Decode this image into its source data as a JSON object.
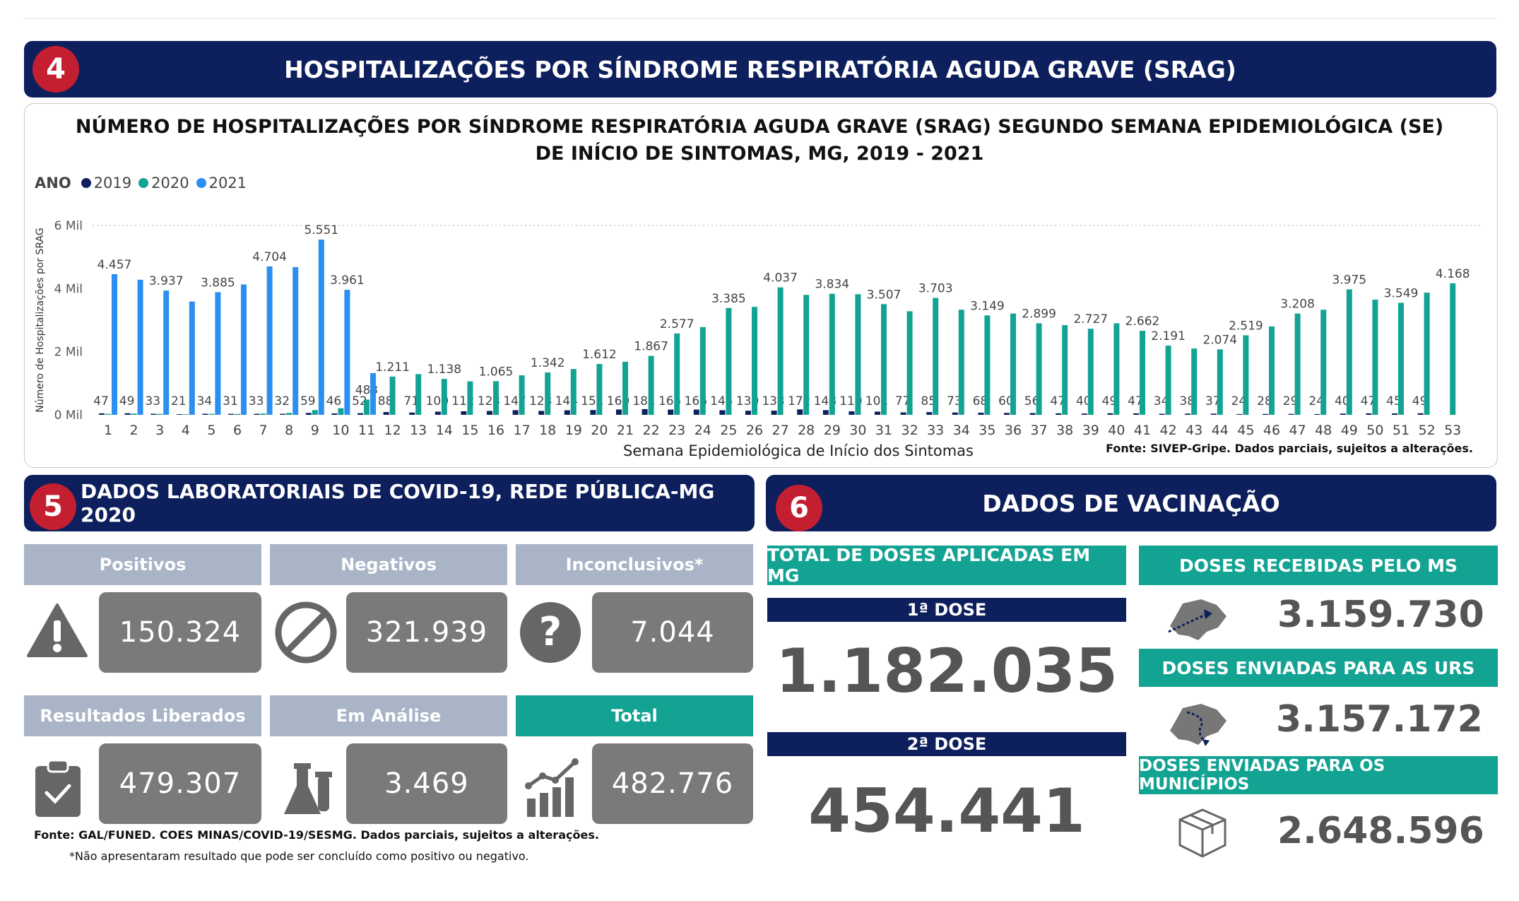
{
  "top_rule": true,
  "section4": {
    "number": "4",
    "title": "HOSPITALIZAÇÕES POR SÍNDROME RESPIRATÓRIA AGUDA GRAVE (SRAG)"
  },
  "chart_data": {
    "type": "bar",
    "title": "NÚMERO DE HOSPITALIZAÇÕES POR SÍNDROME RESPIRATÓRIA AGUDA GRAVE (SRAG) SEGUNDO SEMANA EPIDEMIOLÓGICA (SE) DE INÍCIO DE SINTOMAS, MG, 2019 - 2021",
    "legend_title": "ANO",
    "xlabel": "Semana Epidemiológica de Início dos Sintomas",
    "ylabel": "Número de Hospitalizações por SRAG",
    "ylim": [
      0,
      6000
    ],
    "yticks": [
      {
        "v": 0,
        "label": "0 Mil"
      },
      {
        "v": 2000,
        "label": "2 Mil"
      },
      {
        "v": 4000,
        "label": "4 Mil"
      },
      {
        "v": 6000,
        "label": "6 Mil"
      }
    ],
    "grid": "dotted-top",
    "legend_position": "top-left",
    "categories": [
      "1",
      "2",
      "3",
      "4",
      "5",
      "6",
      "7",
      "8",
      "9",
      "10",
      "11",
      "12",
      "13",
      "14",
      "15",
      "16",
      "17",
      "18",
      "19",
      "20",
      "21",
      "22",
      "23",
      "24",
      "25",
      "26",
      "27",
      "28",
      "29",
      "30",
      "31",
      "32",
      "33",
      "34",
      "35",
      "36",
      "37",
      "38",
      "39",
      "40",
      "41",
      "42",
      "43",
      "44",
      "45",
      "46",
      "47",
      "48",
      "49",
      "50",
      "51",
      "52",
      "53"
    ],
    "series": [
      {
        "name": "2019",
        "color": "#0d1f5c",
        "values": [
          47,
          49,
          33,
          21,
          34,
          31,
          33,
          32,
          59,
          46,
          52,
          88,
          71,
          100,
          112,
          123,
          147,
          123,
          144,
          151,
          169,
          181,
          165,
          166,
          145,
          130,
          133,
          172,
          148,
          110,
          101,
          77,
          85,
          73,
          68,
          60,
          56,
          47,
          40,
          49,
          47,
          34,
          38,
          37,
          24,
          28,
          29,
          24,
          40,
          47,
          45,
          49,
          null
        ],
        "labels": [
          "47",
          "49",
          "33",
          "21",
          "34",
          "31",
          "33",
          "32",
          "59",
          "46",
          "52",
          "88",
          "71",
          "100",
          "112",
          "123",
          "147",
          "123",
          "144",
          "151",
          "169",
          "181",
          "165",
          "166",
          "145",
          "130",
          "133",
          "172",
          "148",
          "110",
          "101",
          "77",
          "85",
          "73",
          "68",
          "60",
          "56",
          "47",
          "40",
          "49",
          "47",
          "34",
          "38",
          "37",
          "24",
          "28",
          "29",
          "24",
          "40",
          "47",
          "45",
          "49",
          ""
        ]
      },
      {
        "name": "2020",
        "color": "#12a393",
        "values": [
          30,
          40,
          30,
          20,
          30,
          30,
          40,
          60,
          150,
          210,
          483,
          1211,
          1290,
          1138,
          1060,
          1065,
          1250,
          1342,
          1450,
          1612,
          1680,
          1867,
          2577,
          2780,
          3385,
          3420,
          4037,
          3800,
          3834,
          3820,
          3507,
          3280,
          3703,
          3330,
          3149,
          3210,
          2899,
          2840,
          2727,
          2900,
          2662,
          2191,
          2100,
          2074,
          2519,
          2800,
          3208,
          3330,
          3975,
          3650,
          3549,
          3870,
          4168
        ],
        "labels": [
          "",
          "",
          "",
          "",
          "",
          "",
          "",
          "",
          "",
          "",
          "483",
          "1.211",
          "",
          "1.138",
          "",
          "1.065",
          "",
          "1.342",
          "",
          "1.612",
          "",
          "1.867",
          "2.577",
          "",
          "3.385",
          "",
          "4.037",
          "",
          "3.834",
          "",
          "3.507",
          "",
          "3.703",
          "",
          "3.149",
          "",
          "2.899",
          "",
          "2.727",
          "",
          "2.662",
          "2.191",
          "",
          "2.074",
          "2.519",
          "",
          "3.208",
          "",
          "3.975",
          "",
          "3.549",
          "",
          "4.168"
        ]
      },
      {
        "name": "2021",
        "color": "#2a8ff0",
        "values": [
          4457,
          4280,
          3937,
          3590,
          3885,
          4130,
          4704,
          4680,
          5551,
          3961,
          1320,
          null,
          null,
          null,
          null,
          null,
          null,
          null,
          null,
          null,
          null,
          null,
          null,
          null,
          null,
          null,
          null,
          null,
          null,
          null,
          null,
          null,
          null,
          null,
          null,
          null,
          null,
          null,
          null,
          null,
          null,
          null,
          null,
          null,
          null,
          null,
          null,
          null,
          null,
          null,
          null,
          null,
          null
        ],
        "labels": [
          "4.457",
          "",
          "3.937",
          "",
          "3.885",
          "",
          "4.704",
          "",
          "5.551",
          "3.961",
          "",
          "",
          "",
          "",
          "",
          "",
          "",
          "",
          "",
          "",
          "",
          "",
          "",
          "",
          "",
          "",
          "",
          "",
          "",
          "",
          "",
          "",
          "",
          "",
          "",
          "",
          "",
          "",
          "",
          "",
          "",
          "",
          "",
          "",
          "",
          "",
          "",
          "",
          "",
          "",
          "",
          "",
          ""
        ]
      }
    ]
  },
  "chart_source": "Fonte: SIVEP-Gripe. Dados parciais, sujeitos a alterações.",
  "section5": {
    "number": "5",
    "title": "DADOS LABORATORIAIS DE COVID-19, REDE PÚBLICA-MG 2020",
    "cards": [
      {
        "label": "Positivos",
        "value": "150.324",
        "icon": "warning-icon"
      },
      {
        "label": "Negativos",
        "value": "321.939",
        "icon": "prohibited-icon"
      },
      {
        "label": "Inconclusivos*",
        "value": "7.044",
        "icon": "question-icon"
      },
      {
        "label": "Resultados Liberados",
        "value": "479.307",
        "icon": "clipboard-check-icon"
      },
      {
        "label": "Em Análise",
        "value": "3.469",
        "icon": "lab-flask-icon"
      },
      {
        "label": "Total",
        "value": "482.776",
        "icon": "chart-growth-icon"
      }
    ],
    "source": "Fonte: GAL/FUNED. COES MINAS/COVID-19/SESMG. Dados parciais, sujeitos a alterações.",
    "note": "*Não apresentaram resultado que pode ser concluído como positivo ou negativo.",
    "colors": {
      "grey_header": "#a9b4c7",
      "teal_header": "#12a393",
      "value_box": "#7a7a7a"
    }
  },
  "section6": {
    "number": "6",
    "title": "DADOS DE VACINAÇÃO",
    "total_header": "TOTAL DE DOSES APLICADAS EM MG",
    "dose1_label": "1ª DOSE",
    "dose1_value": "1.182.035",
    "dose2_label": "2ª DOSE",
    "dose2_value": "454.441",
    "received_header": "DOSES RECEBIDAS PELO MS",
    "received_value": "3.159.730",
    "sent_urs_header": "DOSES ENVIADAS PARA AS URS",
    "sent_urs_value": "3.157.172",
    "sent_mun_header": "DOSES ENVIADAS PARA OS MUNICÍPIOS",
    "sent_mun_value": "2.648.596",
    "icons": [
      "mg-map-arrow-icon",
      "mg-map-route-icon",
      "package-box-icon"
    ]
  }
}
